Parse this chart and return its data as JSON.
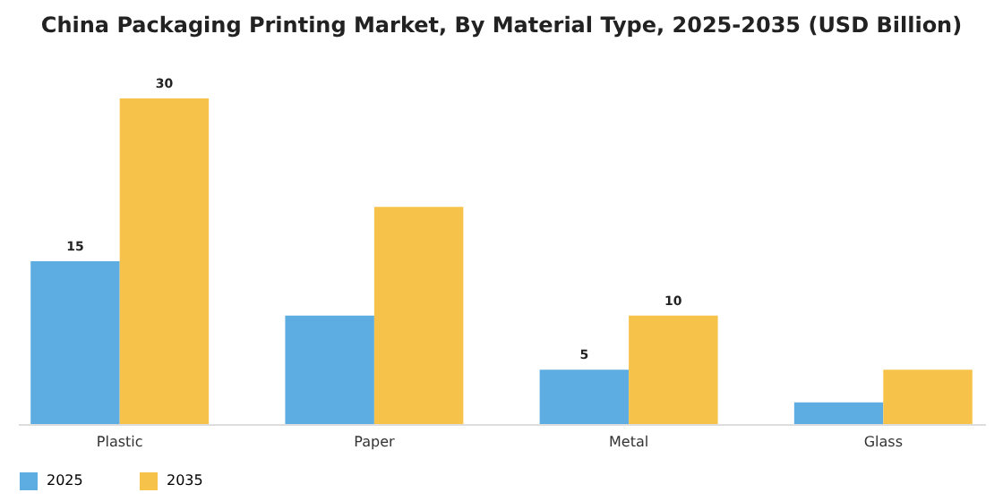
{
  "chart_data": {
    "type": "bar",
    "title": "China Packaging Printing Market, By Material Type, 2025-2035 (USD Billion)",
    "categories": [
      "Plastic",
      "Paper",
      "Metal",
      "Glass"
    ],
    "series": [
      {
        "name": "2025",
        "color": "#5dade2",
        "values": [
          15,
          10,
          5,
          2
        ],
        "value_labels": [
          "15",
          null,
          "5",
          null
        ]
      },
      {
        "name": "2035",
        "color": "#f7c24a",
        "values": [
          30,
          20,
          10,
          5
        ],
        "value_labels": [
          "30",
          null,
          "10",
          null
        ]
      }
    ],
    "legend": "bottom",
    "grid": false
  }
}
